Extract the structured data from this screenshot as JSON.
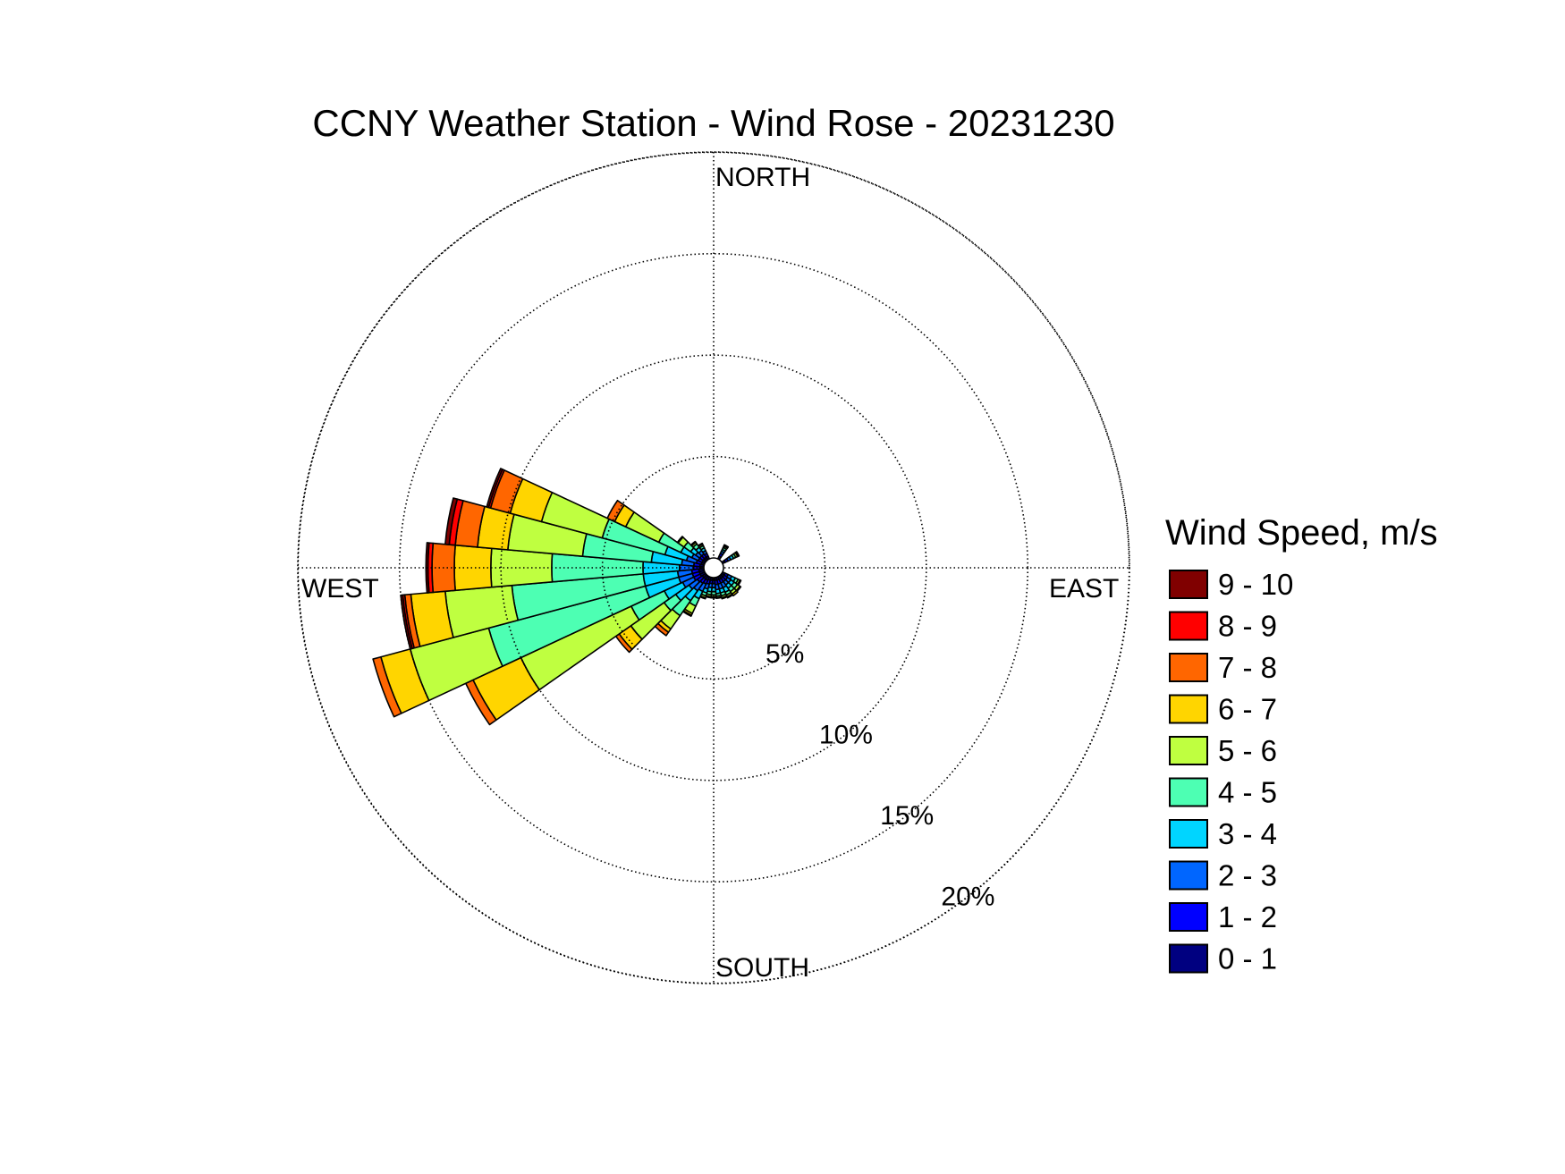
{
  "chart_data": {
    "type": "wind-rose",
    "title": "CCNY Weather Station - Wind Rose - 20231230",
    "direction_labels": {
      "north": "NORTH",
      "east": "EAST",
      "south": "SOUTH",
      "west": "WEST"
    },
    "radial_unit": "percent frequency",
    "ring_values": [
      5,
      10,
      15,
      20
    ],
    "ring_labels": [
      "5%",
      "10%",
      "15%",
      "20%"
    ],
    "rmax": 20.5,
    "legend": {
      "title": "Wind Speed, m/s",
      "bins": [
        {
          "label": "9 - 10",
          "color": "#800000"
        },
        {
          "label": "8 - 9",
          "color": "#ff0000"
        },
        {
          "label": "7 - 8",
          "color": "#ff6600"
        },
        {
          "label": "6 - 7",
          "color": "#ffd500"
        },
        {
          "label": "5 - 6",
          "color": "#bfff40"
        },
        {
          "label": "4 - 5",
          "color": "#4dffb3"
        },
        {
          "label": "3 - 4",
          "color": "#00d5ff"
        },
        {
          "label": "2 - 3",
          "color": "#0066ff"
        },
        {
          "label": "1 - 2",
          "color": "#0000ff"
        },
        {
          "label": "0 - 1",
          "color": "#000080"
        }
      ]
    },
    "sector_width_deg": 10,
    "bin_order": [
      "0 - 1",
      "1 - 2",
      "2 - 3",
      "3 - 4",
      "4 - 5",
      "5 - 6",
      "6 - 7",
      "7 - 8",
      "8 - 9",
      "9 - 10"
    ],
    "sectors": [
      {
        "direction_deg": 30,
        "cumulative": [
          0.15,
          0.3,
          0.42,
          0.52,
          0.62,
          0.7,
          0.74,
          0.77,
          0.77,
          0.77
        ]
      },
      {
        "direction_deg": 60,
        "cumulative": [
          0.15,
          0.3,
          0.45,
          0.6,
          0.72,
          0.82,
          0.88,
          0.9,
          0.9,
          0.9
        ]
      },
      {
        "direction_deg": 120,
        "cumulative": [
          0.15,
          0.3,
          0.5,
          0.7,
          0.85,
          0.95,
          1.0,
          1.0,
          1.0,
          1.0
        ]
      },
      {
        "direction_deg": 130,
        "cumulative": [
          0.15,
          0.35,
          0.55,
          0.75,
          0.95,
          1.1,
          1.15,
          1.15,
          1.15,
          1.15
        ]
      },
      {
        "direction_deg": 140,
        "cumulative": [
          0.15,
          0.35,
          0.55,
          0.75,
          0.95,
          1.1,
          1.2,
          1.2,
          1.2,
          1.2
        ]
      },
      {
        "direction_deg": 150,
        "cumulative": [
          0.15,
          0.35,
          0.6,
          0.85,
          1.0,
          1.1,
          1.15,
          1.15,
          1.15,
          1.15
        ]
      },
      {
        "direction_deg": 160,
        "cumulative": [
          0.15,
          0.35,
          0.6,
          0.8,
          0.95,
          1.05,
          1.1,
          1.1,
          1.1,
          1.1
        ]
      },
      {
        "direction_deg": 170,
        "cumulative": [
          0.15,
          0.35,
          0.6,
          0.8,
          0.92,
          1.0,
          1.03,
          1.03,
          1.03,
          1.03
        ]
      },
      {
        "direction_deg": 180,
        "cumulative": [
          0.15,
          0.3,
          0.5,
          0.7,
          0.85,
          0.95,
          1.0,
          1.0,
          1.0,
          1.0
        ]
      },
      {
        "direction_deg": 190,
        "cumulative": [
          0.15,
          0.3,
          0.5,
          0.7,
          0.85,
          0.95,
          1.0,
          1.0,
          1.0,
          1.0
        ]
      },
      {
        "direction_deg": 200,
        "cumulative": [
          0.15,
          0.35,
          0.6,
          0.8,
          0.95,
          1.05,
          1.1,
          1.1,
          1.1,
          1.1
        ]
      },
      {
        "direction_deg": 210,
        "cumulative": [
          0.2,
          0.4,
          0.8,
          1.2,
          1.6,
          2.0,
          2.1,
          2.15,
          2.15,
          2.15
        ]
      },
      {
        "direction_deg": 220,
        "cumulative": [
          0.2,
          0.45,
          0.9,
          1.5,
          2.4,
          3.2,
          3.4,
          3.6,
          3.6,
          3.6
        ]
      },
      {
        "direction_deg": 230,
        "cumulative": [
          0.2,
          0.5,
          1.0,
          1.8,
          2.5,
          4.5,
          5.2,
          5.4,
          5.4,
          5.4
        ]
      },
      {
        "direction_deg": 240,
        "cumulative": [
          0.25,
          0.6,
          1.2,
          2.2,
          4.0,
          10.0,
          12.6,
          13.0,
          13.0,
          13.0
        ]
      },
      {
        "direction_deg": 250,
        "cumulative": [
          0.25,
          0.6,
          1.3,
          3.0,
          11.0,
          15.0,
          16.5,
          16.9,
          16.9,
          16.9
        ]
      },
      {
        "direction_deg": 260,
        "cumulative": [
          0.25,
          0.6,
          1.3,
          3.0,
          9.5,
          12.8,
          14.5,
          14.8,
          14.9,
          15.0
        ]
      },
      {
        "direction_deg": 270,
        "cumulative": [
          0.2,
          0.5,
          1.2,
          3.0,
          7.5,
          10.5,
          12.3,
          13.4,
          13.6,
          13.7
        ]
      },
      {
        "direction_deg": 280,
        "cumulative": [
          0.2,
          0.5,
          1.1,
          2.6,
          6.0,
          9.7,
          11.2,
          12.3,
          12.6,
          12.8
        ]
      },
      {
        "direction_deg": 290,
        "cumulative": [
          0.15,
          0.4,
          0.9,
          2.0,
          5.2,
          8.3,
          9.9,
          10.9,
          11.0,
          11.1
        ]
      },
      {
        "direction_deg": 300,
        "cumulative": [
          0.15,
          0.35,
          0.7,
          1.3,
          2.5,
          4.3,
          4.9,
          5.3,
          5.3,
          5.3
        ]
      },
      {
        "direction_deg": 310,
        "cumulative": [
          0.15,
          0.35,
          0.6,
          0.9,
          1.3,
          1.65,
          1.7,
          1.7,
          1.7,
          1.7
        ]
      },
      {
        "direction_deg": 320,
        "cumulative": [
          0.15,
          0.35,
          0.55,
          0.75,
          0.95,
          1.05,
          1.1,
          1.1,
          1.1,
          1.1
        ]
      },
      {
        "direction_deg": 330,
        "cumulative": [
          0.15,
          0.3,
          0.45,
          0.6,
          0.72,
          0.8,
          0.85,
          0.85,
          0.85,
          0.85
        ]
      }
    ]
  }
}
